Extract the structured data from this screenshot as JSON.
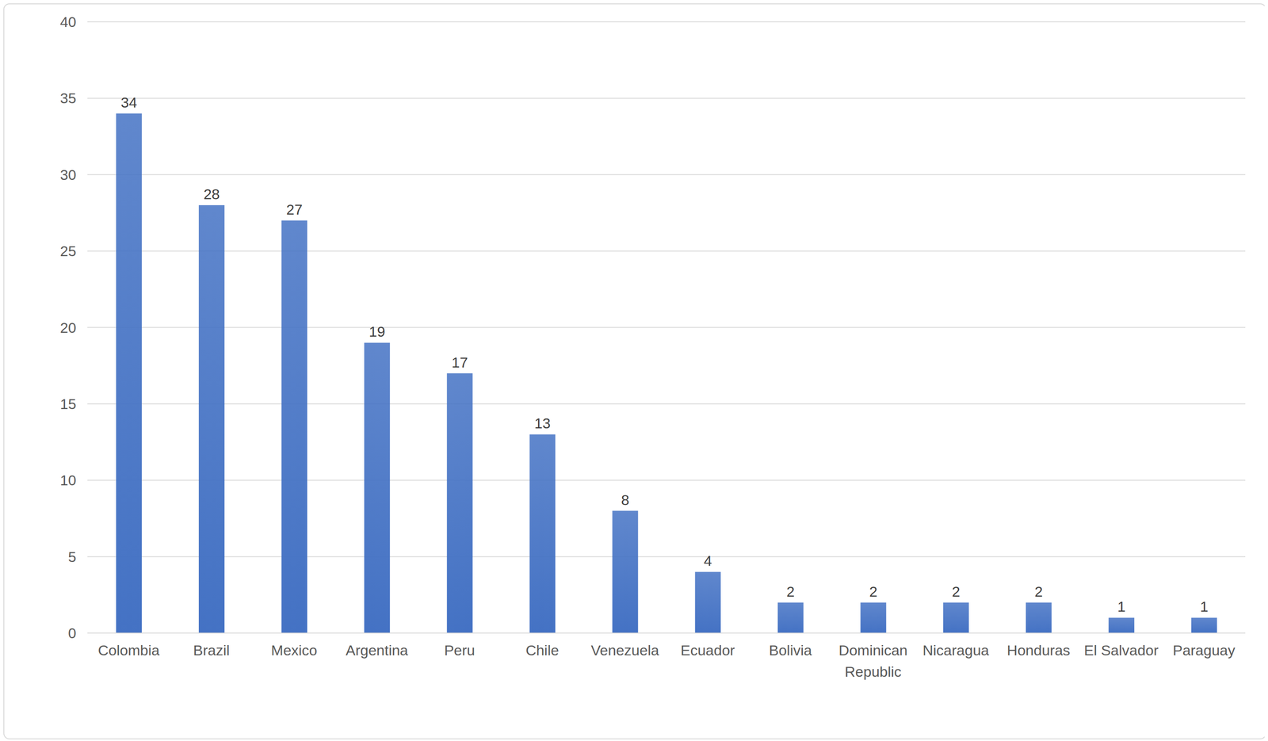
{
  "chart_data": {
    "type": "bar",
    "categories": [
      "Colombia",
      "Brazil",
      "Mexico",
      "Argentina",
      "Peru",
      "Chile",
      "Venezuela",
      "Ecuador",
      "Bolivia",
      "Dominican Republic",
      "Nicaragua",
      "Honduras",
      "El Salvador",
      "Paraguay"
    ],
    "values": [
      34,
      28,
      27,
      19,
      17,
      13,
      8,
      4,
      2,
      2,
      2,
      2,
      1,
      1
    ],
    "color": "#4472c4",
    "ylim": [
      0,
      40
    ],
    "yticks": [
      0,
      5,
      10,
      15,
      20,
      25,
      30,
      35,
      40
    ],
    "grid": true,
    "data_labels": true
  }
}
